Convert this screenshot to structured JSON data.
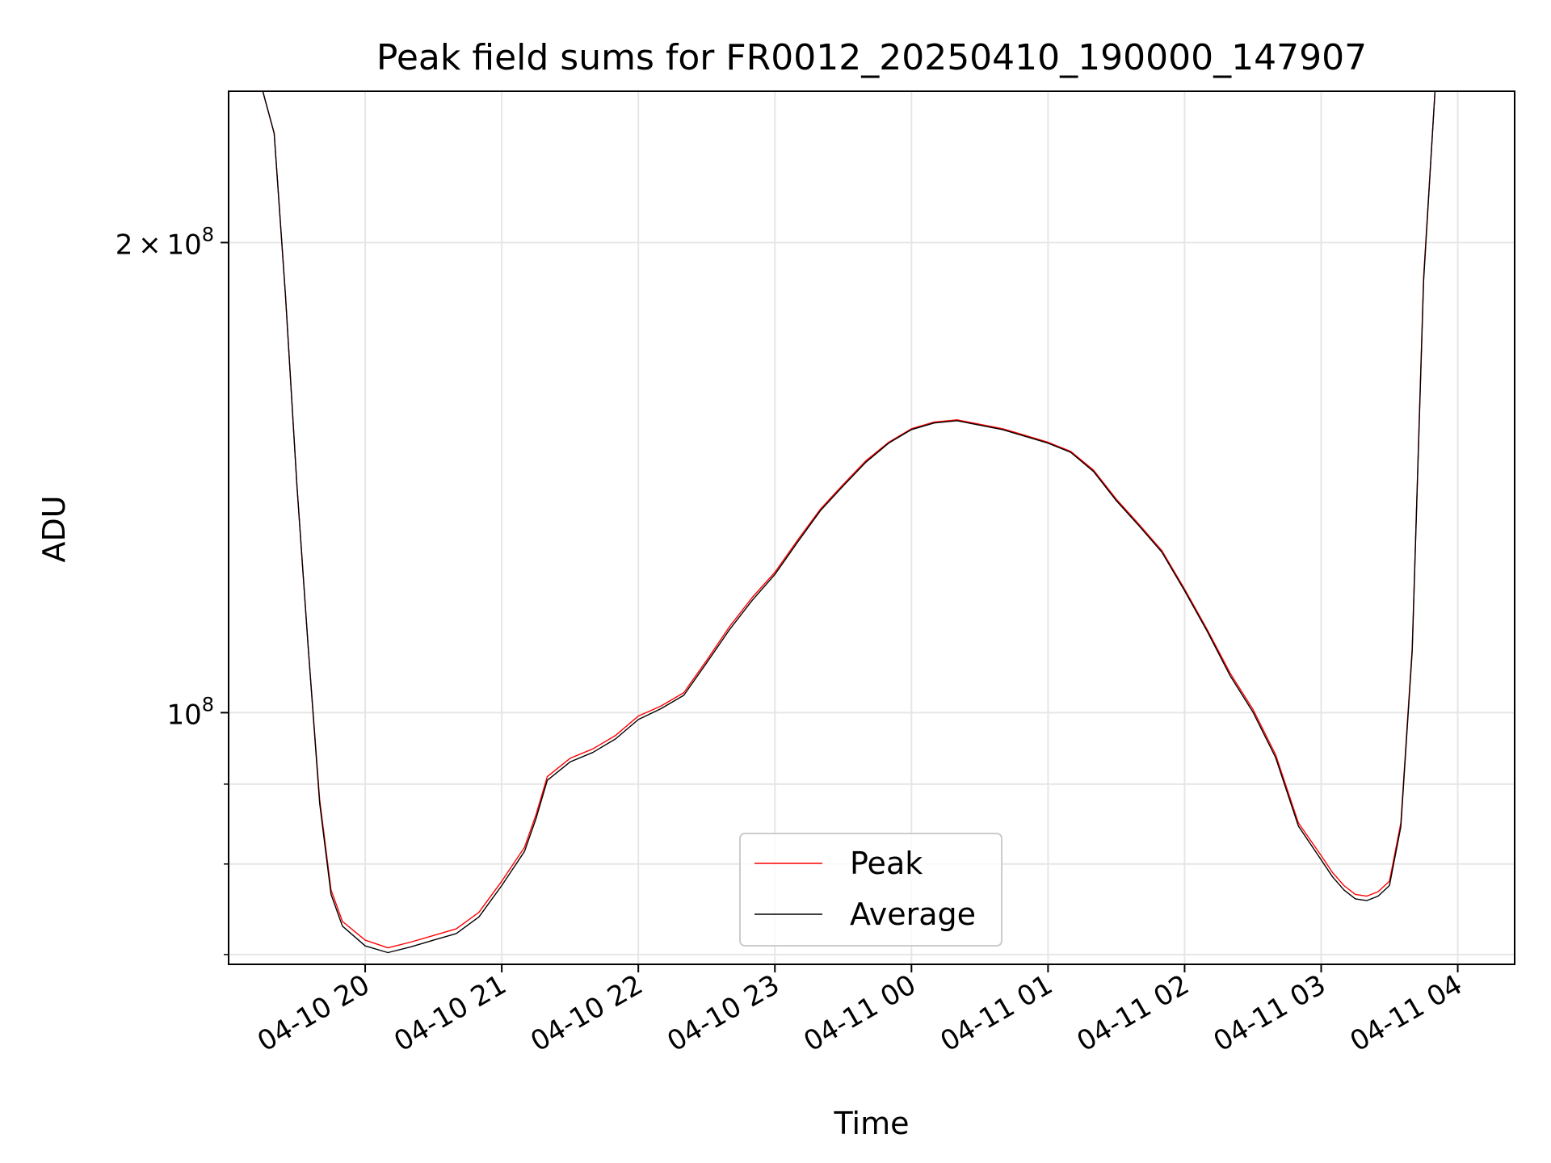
{
  "chart_data": {
    "type": "line",
    "title": "Peak field sums for FR0012_20250410_190000_147907",
    "xlabel": "Time",
    "ylabel": "ADU",
    "yscale": "log",
    "xlim": [
      "2025-04-10 19:00",
      "2025-04-11 04:25"
    ],
    "ylim": [
      69000000,
      250000000
    ],
    "grid": true,
    "legend_position": "lower-center",
    "x_ticks": [
      "04-10 20",
      "04-10 21",
      "04-10 22",
      "04-10 23",
      "04-11 00",
      "04-11 01",
      "04-11 02",
      "04-11 03",
      "04-11 04"
    ],
    "x_tick_times": [
      "2025-04-10 20:00",
      "2025-04-10 21:00",
      "2025-04-10 22:00",
      "2025-04-10 23:00",
      "2025-04-11 00:00",
      "2025-04-11 01:00",
      "2025-04-11 02:00",
      "2025-04-11 03:00",
      "2025-04-11 04:00"
    ],
    "y_major_ticks": [
      {
        "value": 100000000,
        "mantissa": "",
        "exponent": "8"
      },
      {
        "value": 200000000,
        "mantissa": "2",
        "exponent": "8"
      }
    ],
    "y_minor_ticks": [
      70000000,
      80000000,
      90000000
    ],
    "series": [
      {
        "name": "Peak",
        "color": "#ff0000",
        "x": [
          "2025-04-10 19:00",
          "2025-04-10 19:10",
          "2025-04-10 19:15",
          "2025-04-10 19:20",
          "2025-04-10 19:25",
          "2025-04-10 19:30",
          "2025-04-10 19:35",
          "2025-04-10 19:40",
          "2025-04-10 19:45",
          "2025-04-10 19:50",
          "2025-04-10 20:00",
          "2025-04-10 20:10",
          "2025-04-10 20:20",
          "2025-04-10 20:30",
          "2025-04-10 20:40",
          "2025-04-10 20:50",
          "2025-04-10 21:00",
          "2025-04-10 21:10",
          "2025-04-10 21:15",
          "2025-04-10 21:20",
          "2025-04-10 21:30",
          "2025-04-10 21:40",
          "2025-04-10 21:50",
          "2025-04-10 22:00",
          "2025-04-10 22:10",
          "2025-04-10 22:20",
          "2025-04-10 22:30",
          "2025-04-10 22:40",
          "2025-04-10 22:50",
          "2025-04-10 23:00",
          "2025-04-10 23:10",
          "2025-04-10 23:20",
          "2025-04-10 23:30",
          "2025-04-10 23:40",
          "2025-04-10 23:50",
          "2025-04-11 00:00",
          "2025-04-11 00:10",
          "2025-04-11 00:20",
          "2025-04-11 00:30",
          "2025-04-11 00:40",
          "2025-04-11 00:50",
          "2025-04-11 01:00",
          "2025-04-11 01:10",
          "2025-04-11 01:20",
          "2025-04-11 01:30",
          "2025-04-11 01:40",
          "2025-04-11 01:50",
          "2025-04-11 02:00",
          "2025-04-11 02:10",
          "2025-04-11 02:20",
          "2025-04-11 02:30",
          "2025-04-11 02:40",
          "2025-04-11 02:50",
          "2025-04-11 03:00",
          "2025-04-11 03:05",
          "2025-04-11 03:10",
          "2025-04-11 03:15",
          "2025-04-11 03:20",
          "2025-04-11 03:25",
          "2025-04-11 03:30",
          "2025-04-11 03:35",
          "2025-04-11 03:40",
          "2025-04-11 03:45",
          "2025-04-11 03:50",
          "2025-04-11 03:55",
          "2025-04-11 04:00",
          "2025-04-11 04:05",
          "2025-04-11 04:10",
          "2025-04-11 04:15",
          "2025-04-11 04:25"
        ],
        "y": [
          250000000,
          250000000,
          250000000,
          235000000,
          185000000,
          140000000,
          110000000,
          88000000,
          77000000,
          73500000,
          71500000,
          70700000,
          71300000,
          72000000,
          72700000,
          74500000,
          78000000,
          82000000,
          86000000,
          91000000,
          93500000,
          94800000,
          96700000,
          99500000,
          101000000,
          103000000,
          108000000,
          113500000,
          118500000,
          123000000,
          129000000,
          135000000,
          140000000,
          145000000,
          149000000,
          152000000,
          153500000,
          154000000,
          153000000,
          152000000,
          150500000,
          149000000,
          147000000,
          143000000,
          137000000,
          132000000,
          127000000,
          120000000,
          113000000,
          106000000,
          100500000,
          94000000,
          85000000,
          81000000,
          79000000,
          77500000,
          76500000,
          76300000,
          76800000,
          78000000,
          85000000,
          110000000,
          190000000,
          250000000,
          250000000,
          250000000,
          250000000,
          250000000,
          250000000,
          250000000
        ]
      },
      {
        "name": "Average",
        "color": "#000000",
        "x": [
          "2025-04-10 19:00",
          "2025-04-10 19:10",
          "2025-04-10 19:15",
          "2025-04-10 19:20",
          "2025-04-10 19:25",
          "2025-04-10 19:30",
          "2025-04-10 19:35",
          "2025-04-10 19:40",
          "2025-04-10 19:45",
          "2025-04-10 19:50",
          "2025-04-10 20:00",
          "2025-04-10 20:10",
          "2025-04-10 20:20",
          "2025-04-10 20:30",
          "2025-04-10 20:40",
          "2025-04-10 20:50",
          "2025-04-10 21:00",
          "2025-04-10 21:10",
          "2025-04-10 21:15",
          "2025-04-10 21:20",
          "2025-04-10 21:30",
          "2025-04-10 21:40",
          "2025-04-10 21:50",
          "2025-04-10 22:00",
          "2025-04-10 22:10",
          "2025-04-10 22:20",
          "2025-04-10 22:30",
          "2025-04-10 22:40",
          "2025-04-10 22:50",
          "2025-04-10 23:00",
          "2025-04-10 23:10",
          "2025-04-10 23:20",
          "2025-04-10 23:30",
          "2025-04-10 23:40",
          "2025-04-10 23:50",
          "2025-04-11 00:00",
          "2025-04-11 00:10",
          "2025-04-11 00:20",
          "2025-04-11 00:30",
          "2025-04-11 00:40",
          "2025-04-11 00:50",
          "2025-04-11 01:00",
          "2025-04-11 01:10",
          "2025-04-11 01:20",
          "2025-04-11 01:30",
          "2025-04-11 01:40",
          "2025-04-11 01:50",
          "2025-04-11 02:00",
          "2025-04-11 02:10",
          "2025-04-11 02:20",
          "2025-04-11 02:30",
          "2025-04-11 02:40",
          "2025-04-11 02:50",
          "2025-04-11 03:00",
          "2025-04-11 03:05",
          "2025-04-11 03:10",
          "2025-04-11 03:15",
          "2025-04-11 03:20",
          "2025-04-11 03:25",
          "2025-04-11 03:30",
          "2025-04-11 03:35",
          "2025-04-11 03:40",
          "2025-04-11 03:45",
          "2025-04-11 03:50",
          "2025-04-11 03:55",
          "2025-04-11 04:00",
          "2025-04-11 04:05",
          "2025-04-11 04:10",
          "2025-04-11 04:15",
          "2025-04-11 04:25"
        ],
        "y": [
          250000000,
          250000000,
          250000000,
          235000000,
          185000000,
          140000000,
          110000000,
          87500000,
          76500000,
          73000000,
          70900000,
          70200000,
          70800000,
          71500000,
          72200000,
          74000000,
          77500000,
          81500000,
          85500000,
          90500000,
          93000000,
          94300000,
          96200000,
          99000000,
          100600000,
          102600000,
          107600000,
          113000000,
          118000000,
          122600000,
          128600000,
          134700000,
          139700000,
          144700000,
          148800000,
          151800000,
          153300000,
          153800000,
          152800000,
          151800000,
          150300000,
          148800000,
          146800000,
          142700000,
          136700000,
          131700000,
          126700000,
          119700000,
          112700000,
          105600000,
          100100000,
          93600000,
          84600000,
          80500000,
          78500000,
          77000000,
          76000000,
          75800000,
          76300000,
          77500000,
          84500000,
          109500000,
          189000000,
          250000000,
          250000000,
          250000000,
          250000000,
          250000000,
          250000000,
          250000000
        ]
      }
    ]
  }
}
